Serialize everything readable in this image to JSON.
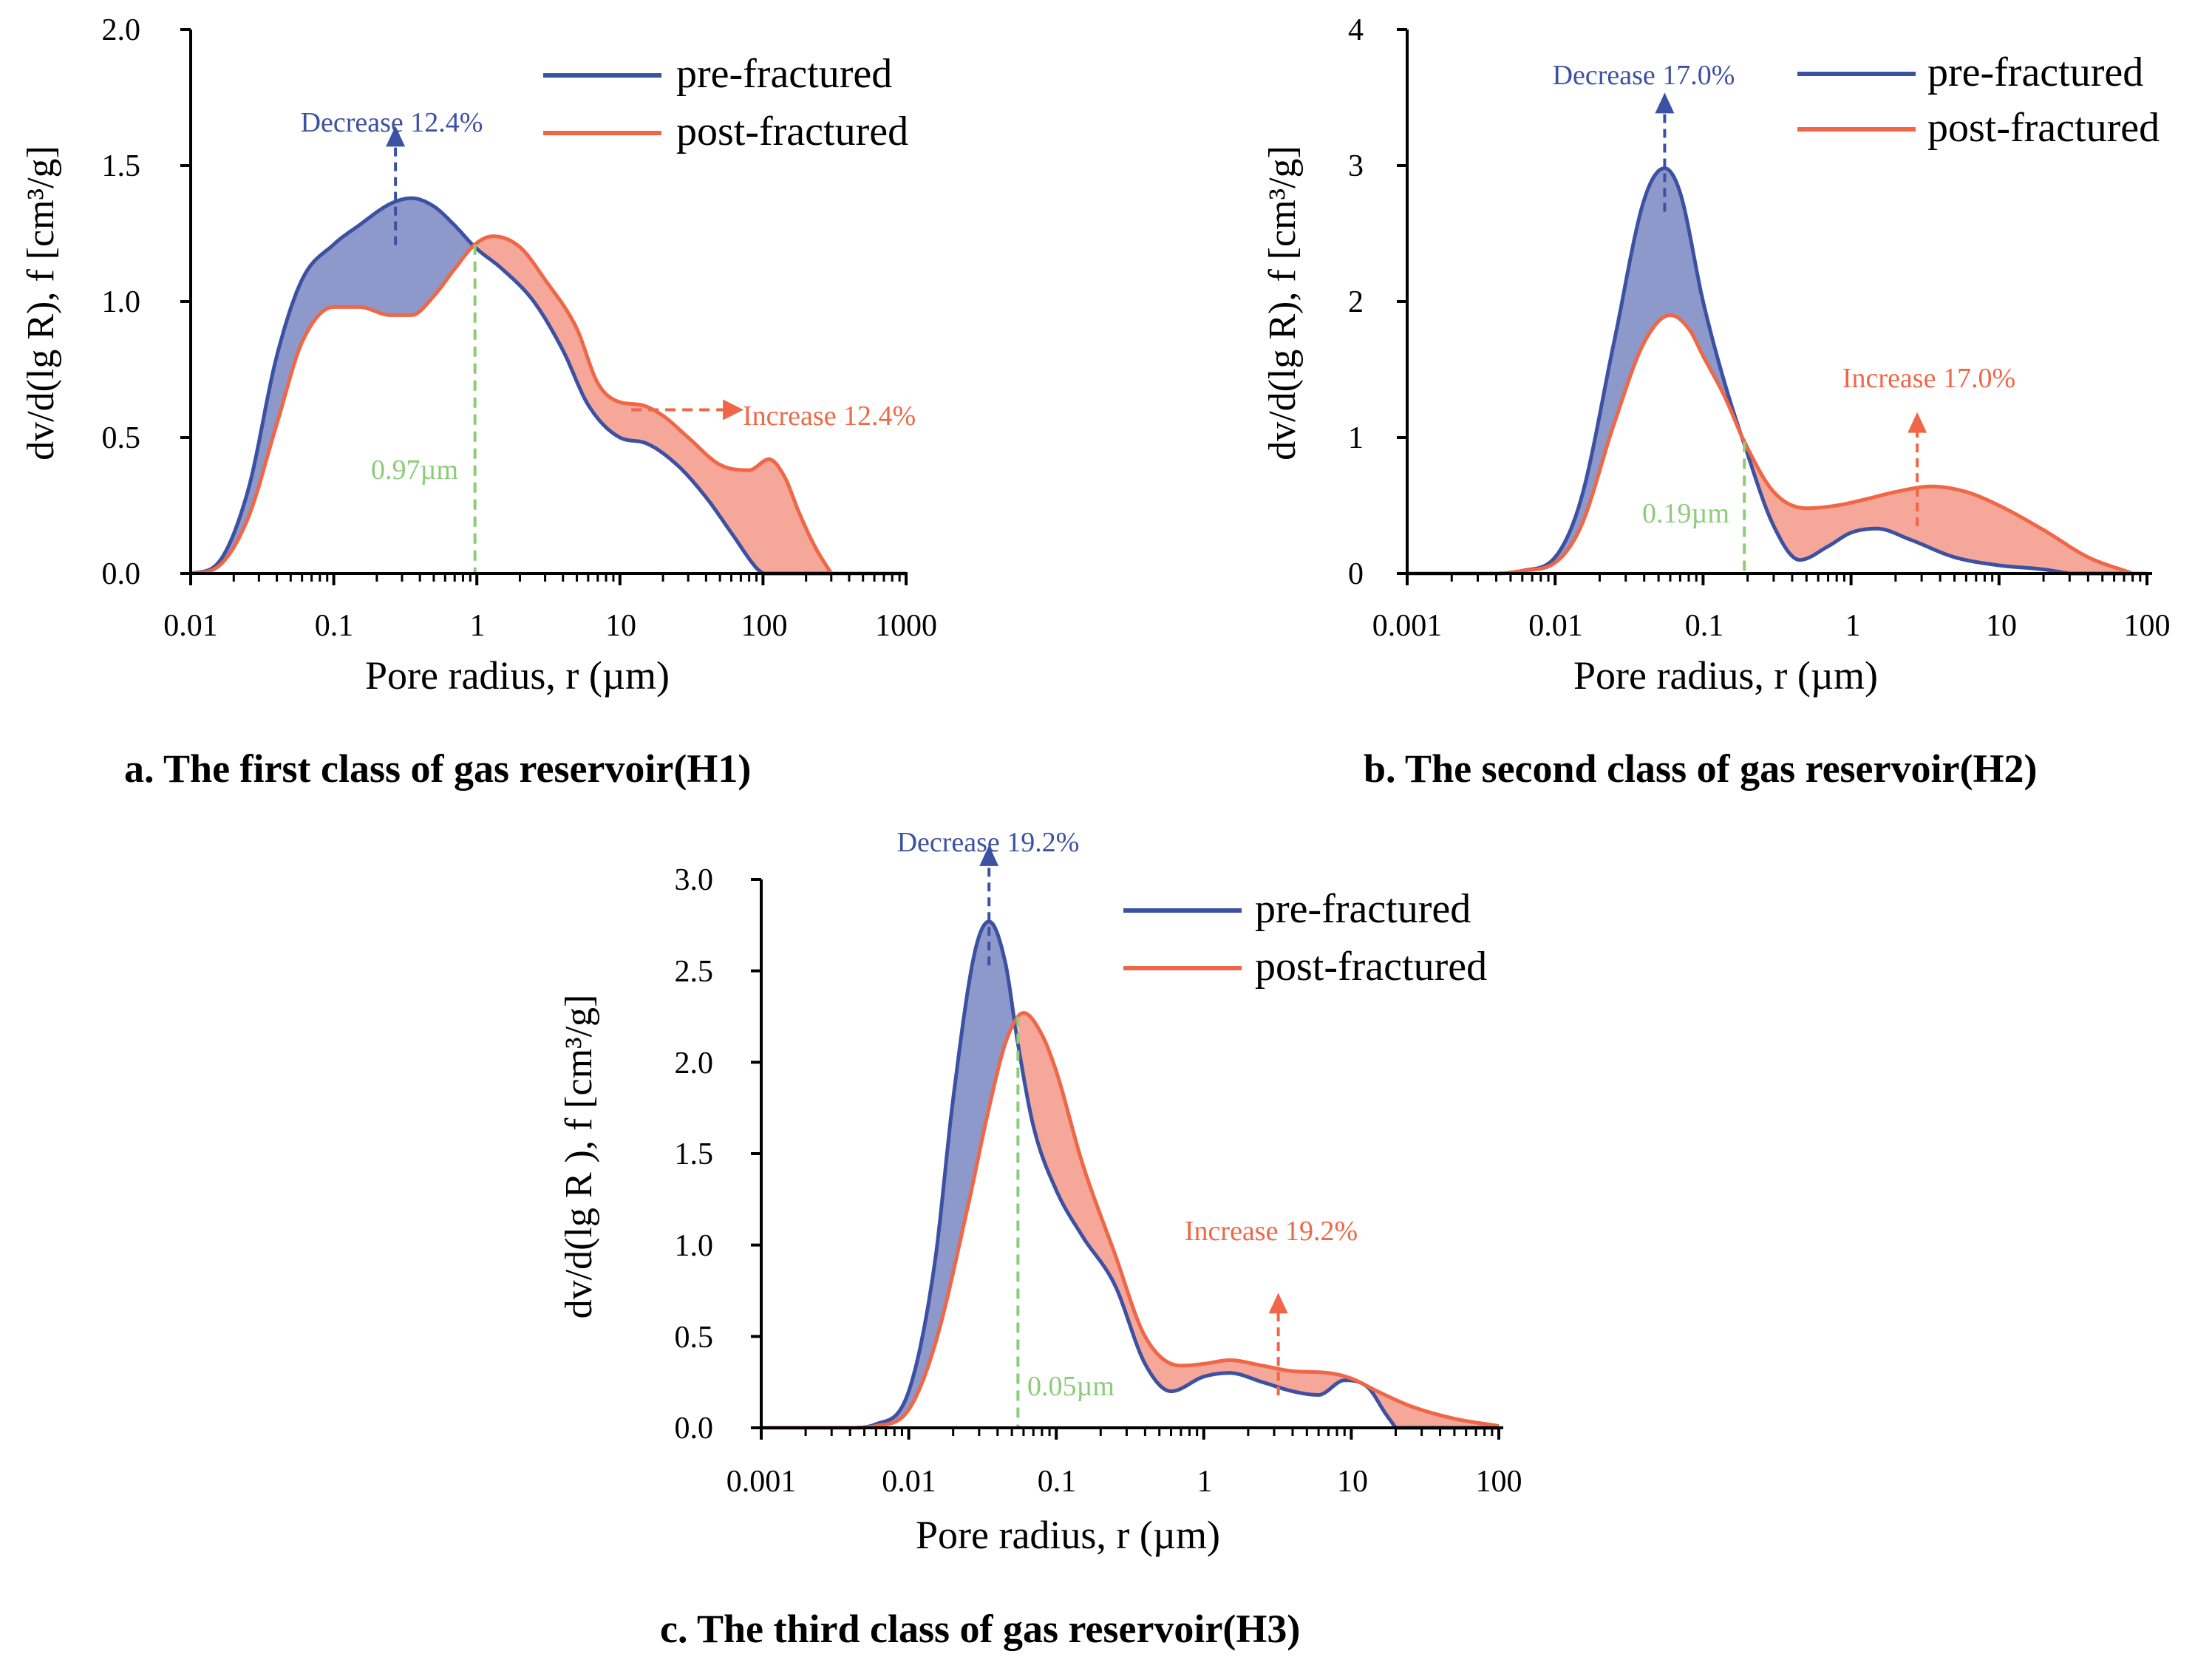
{
  "colors": {
    "pre": "#3d51a3",
    "post": "#ef6747",
    "pre_fill": "#8d99ca",
    "post_fill": "#f5a799",
    "threshold": "#8ccb78",
    "axis": "#000000"
  },
  "chart_data": [
    {
      "type": "area",
      "title": "a. The first class of gas reservoir(H1)",
      "xlabel": "Pore radius, r (µm)",
      "ylabel": "dv/d(lg R), f [cm³/g]",
      "xscale": "log",
      "xlim": [
        0.01,
        1000
      ],
      "ylim": [
        0,
        2.0
      ],
      "xticks": [
        0.01,
        0.1,
        1,
        10,
        100,
        1000
      ],
      "xtick_labels": [
        "0.01",
        "0.1",
        "1",
        "10",
        "100",
        "1000"
      ],
      "yticks": [
        0,
        0.5,
        1.0,
        1.5,
        2.0
      ],
      "ytick_labels": [
        "0.0",
        "0.5",
        "1.0",
        "1.5",
        "2.0"
      ],
      "legend": {
        "position": "top-right",
        "entries": [
          "pre-fractured",
          "post-fractured"
        ]
      },
      "series": [
        {
          "name": "pre-fractured",
          "x": [
            0.01,
            0.015,
            0.025,
            0.04,
            0.06,
            0.1,
            0.15,
            0.25,
            0.35,
            0.5,
            0.7,
            0.97,
            1.5,
            2.5,
            4,
            6,
            10,
            15,
            25,
            40,
            60,
            90,
            100
          ],
          "y": [
            0,
            0.03,
            0.3,
            0.8,
            1.08,
            1.21,
            1.28,
            1.36,
            1.38,
            1.35,
            1.28,
            1.2,
            1.12,
            1.0,
            0.82,
            0.62,
            0.5,
            0.48,
            0.4,
            0.28,
            0.15,
            0.02,
            0
          ]
        },
        {
          "name": "post-fractured",
          "x": [
            0.01,
            0.015,
            0.025,
            0.04,
            0.06,
            0.1,
            0.15,
            0.25,
            0.35,
            0.5,
            0.7,
            0.97,
            1.3,
            2,
            3,
            5,
            7,
            10,
            14,
            20,
            30,
            50,
            80,
            110,
            140,
            180,
            230,
            300
          ],
          "y": [
            0,
            0.02,
            0.2,
            0.55,
            0.85,
            0.98,
            0.98,
            0.95,
            0.95,
            1.02,
            1.12,
            1.21,
            1.24,
            1.2,
            1.08,
            0.9,
            0.7,
            0.63,
            0.62,
            0.58,
            0.5,
            0.4,
            0.38,
            0.42,
            0.36,
            0.22,
            0.1,
            0
          ]
        }
      ],
      "threshold": {
        "x": 0.97,
        "label": "0.97µm"
      },
      "annotations": [
        {
          "text": "Decrease 12.4%",
          "x": 0.27,
          "direction": "up"
        },
        {
          "text": "Increase 12.4%",
          "x": 12,
          "direction": "right"
        }
      ]
    },
    {
      "type": "area",
      "title": "b. The second class of gas reservoir(H2)",
      "xlabel": "Pore radius, r (µm)",
      "ylabel": "dv/d(lg R), f [cm³/g]",
      "xscale": "log",
      "xlim": [
        0.001,
        100
      ],
      "ylim": [
        0,
        4
      ],
      "xticks": [
        0.001,
        0.01,
        0.1,
        1,
        10,
        100
      ],
      "xtick_labels": [
        "0.001",
        "0.01",
        "0.1",
        "1",
        "10",
        "100"
      ],
      "yticks": [
        0,
        1,
        2,
        3,
        4
      ],
      "ytick_labels": [
        "0",
        "1",
        "2",
        "3",
        "4"
      ],
      "legend": {
        "position": "top-right",
        "entries": [
          "pre-fractured",
          "post-fractured"
        ]
      },
      "series": [
        {
          "name": "pre-fractured",
          "x": [
            0.001,
            0.004,
            0.006,
            0.01,
            0.015,
            0.025,
            0.04,
            0.055,
            0.07,
            0.1,
            0.14,
            0.19,
            0.3,
            0.45,
            0.7,
            1,
            1.5,
            2.5,
            5,
            10,
            20,
            30
          ],
          "y": [
            0,
            0,
            0.02,
            0.12,
            0.55,
            1.7,
            2.75,
            2.98,
            2.8,
            2.0,
            1.4,
            0.95,
            0.35,
            0.1,
            0.2,
            0.3,
            0.33,
            0.25,
            0.12,
            0.06,
            0.03,
            0
          ]
        },
        {
          "name": "post-fractured",
          "x": [
            0.001,
            0.004,
            0.006,
            0.01,
            0.015,
            0.025,
            0.04,
            0.06,
            0.08,
            0.1,
            0.14,
            0.19,
            0.3,
            0.5,
            0.8,
            1.3,
            2,
            3.5,
            6,
            10,
            20,
            40,
            80
          ],
          "y": [
            0,
            0,
            0.02,
            0.08,
            0.35,
            1.1,
            1.7,
            1.9,
            1.8,
            1.6,
            1.3,
            0.97,
            0.6,
            0.48,
            0.5,
            0.55,
            0.6,
            0.64,
            0.6,
            0.5,
            0.32,
            0.12,
            0
          ]
        }
      ],
      "threshold": {
        "x": 0.19,
        "label": "0.19µm"
      },
      "annotations": [
        {
          "text": "Decrease 17.0%",
          "x": 0.055,
          "direction": "up"
        },
        {
          "text": "Increase 17.0%",
          "x": 2.8,
          "direction": "up"
        }
      ]
    },
    {
      "type": "area",
      "title": "c. The third class of gas reservoir(H3)",
      "xlabel": "Pore radius, r (µm)",
      "ylabel": "dv/d(lg R ), f [cm³/g]",
      "xscale": "log",
      "xlim": [
        0.001,
        100
      ],
      "ylim": [
        0,
        3.0
      ],
      "xticks": [
        0.001,
        0.01,
        0.1,
        1,
        10,
        100
      ],
      "xtick_labels": [
        "0.001",
        "0.01",
        "0.1",
        "1",
        "10",
        "100"
      ],
      "yticks": [
        0,
        0.5,
        1.0,
        1.5,
        2.0,
        2.5,
        3.0
      ],
      "ytick_labels": [
        "0.0",
        "0.5",
        "1.0",
        "1.5",
        "2.0",
        "2.5",
        "3.0"
      ],
      "legend": {
        "position": "top-right",
        "entries": [
          "pre-fractured",
          "post-fractured"
        ]
      },
      "series": [
        {
          "name": "pre-fractured",
          "x": [
            0.001,
            0.004,
            0.006,
            0.01,
            0.015,
            0.02,
            0.028,
            0.035,
            0.045,
            0.055,
            0.07,
            0.1,
            0.15,
            0.25,
            0.4,
            0.6,
            1,
            1.5,
            2.5,
            4,
            6,
            9,
            13,
            17,
            20
          ],
          "y": [
            0,
            0,
            0.02,
            0.2,
            0.9,
            1.8,
            2.6,
            2.77,
            2.55,
            2.1,
            1.65,
            1.3,
            1.05,
            0.78,
            0.35,
            0.2,
            0.28,
            0.3,
            0.25,
            0.2,
            0.18,
            0.26,
            0.22,
            0.08,
            0
          ]
        },
        {
          "name": "post-fractured",
          "x": [
            0.001,
            0.004,
            0.006,
            0.01,
            0.015,
            0.025,
            0.035,
            0.045,
            0.055,
            0.06,
            0.08,
            0.1,
            0.15,
            0.25,
            0.4,
            0.7,
            1,
            1.5,
            2.5,
            4,
            7,
            10,
            15,
            25,
            50,
            100
          ],
          "y": [
            0,
            0,
            0.01,
            0.1,
            0.45,
            1.2,
            1.75,
            2.1,
            2.25,
            2.27,
            2.15,
            1.95,
            1.45,
            0.95,
            0.5,
            0.34,
            0.35,
            0.37,
            0.34,
            0.31,
            0.3,
            0.27,
            0.2,
            0.12,
            0.05,
            0.01
          ]
        }
      ],
      "threshold": {
        "x": 0.055,
        "label": "0.05µm"
      },
      "annotations": [
        {
          "text": "Decrease 19.2%",
          "x": 0.035,
          "direction": "up"
        },
        {
          "text": "Increase 19.2%",
          "x": 3.2,
          "direction": "up"
        }
      ]
    }
  ]
}
